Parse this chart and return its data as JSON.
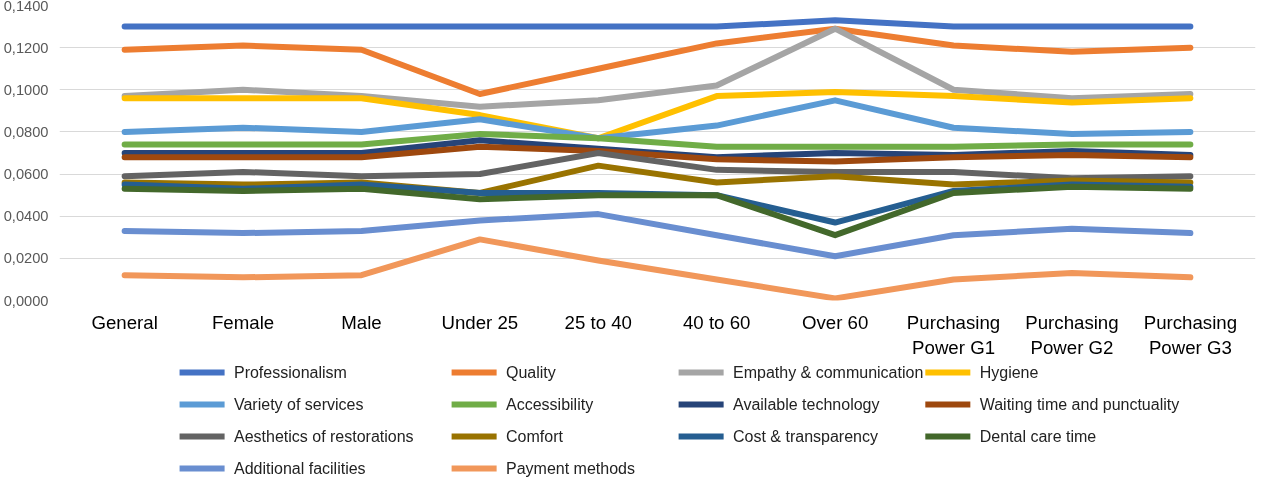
{
  "chart_data": {
    "type": "line",
    "categories": [
      "General",
      "Female",
      "Male",
      "Under 25",
      "25 to 40",
      "40 to 60",
      "Over 60",
      "Purchasing Power G1",
      "Purchasing Power G2",
      "Purchasing Power G3"
    ],
    "ylim": [
      0,
      0.14
    ],
    "yticks": [
      {
        "value": 0,
        "label": "0,0000"
      },
      {
        "value": 0.02,
        "label": "0,0200"
      },
      {
        "value": 0.04,
        "label": "0,0400"
      },
      {
        "value": 0.06,
        "label": "0,0600"
      },
      {
        "value": 0.08,
        "label": "0,0800"
      },
      {
        "value": 0.1,
        "label": "0,1000"
      },
      {
        "value": 0.12,
        "label": "0,1200"
      },
      {
        "value": 0.14,
        "label": "0,1400"
      }
    ],
    "grid": "y",
    "legend": "bottom",
    "marker": "none",
    "line_style": "solid",
    "series": [
      {
        "name": "Professionalism",
        "color": "#4472c4",
        "values": [
          0.13,
          0.13,
          0.13,
          0.13,
          0.13,
          0.13,
          0.133,
          0.13,
          0.13,
          0.13
        ]
      },
      {
        "name": "Quality",
        "color": "#ed7d31",
        "values": [
          0.119,
          0.121,
          0.119,
          0.098,
          0.11,
          0.122,
          0.129,
          0.121,
          0.118,
          0.12
        ]
      },
      {
        "name": "Empathy & communication",
        "color": "#a5a5a5",
        "values": [
          0.097,
          0.1,
          0.097,
          0.092,
          0.095,
          0.102,
          0.129,
          0.1,
          0.096,
          0.098
        ]
      },
      {
        "name": "Hygiene",
        "color": "#ffc000",
        "values": [
          0.096,
          0.096,
          0.096,
          0.088,
          0.077,
          0.097,
          0.099,
          0.097,
          0.094,
          0.096
        ]
      },
      {
        "name": "Variety of services",
        "color": "#5b9bd5",
        "values": [
          0.08,
          0.082,
          0.08,
          0.086,
          0.077,
          0.083,
          0.095,
          0.082,
          0.079,
          0.08
        ]
      },
      {
        "name": "Accessibility",
        "color": "#70ad47",
        "values": [
          0.074,
          0.074,
          0.074,
          0.079,
          0.077,
          0.073,
          0.073,
          0.073,
          0.074,
          0.074
        ]
      },
      {
        "name": "Available technology",
        "color": "#264478",
        "values": [
          0.07,
          0.07,
          0.07,
          0.076,
          0.072,
          0.068,
          0.07,
          0.069,
          0.071,
          0.069
        ]
      },
      {
        "name": "Waiting time and punctuality",
        "color": "#9e480e",
        "values": [
          0.068,
          0.068,
          0.068,
          0.073,
          0.071,
          0.067,
          0.066,
          0.068,
          0.069,
          0.068
        ]
      },
      {
        "name": "Aesthetics of restorations",
        "color": "#636363",
        "values": [
          0.059,
          0.061,
          0.059,
          0.06,
          0.07,
          0.062,
          0.061,
          0.061,
          0.058,
          0.059
        ]
      },
      {
        "name": "Comfort",
        "color": "#997300",
        "values": [
          0.056,
          0.055,
          0.056,
          0.051,
          0.064,
          0.056,
          0.059,
          0.055,
          0.057,
          0.056
        ]
      },
      {
        "name": "Cost & transparency",
        "color": "#255e91",
        "values": [
          0.055,
          0.053,
          0.055,
          0.051,
          0.051,
          0.05,
          0.037,
          0.052,
          0.055,
          0.054
        ]
      },
      {
        "name": "Dental care time",
        "color": "#43682b",
        "values": [
          0.053,
          0.052,
          0.053,
          0.048,
          0.05,
          0.05,
          0.031,
          0.051,
          0.054,
          0.053
        ]
      },
      {
        "name": "Additional facilities",
        "color": "#698ed0",
        "values": [
          0.033,
          0.032,
          0.033,
          0.038,
          0.041,
          0.031,
          0.021,
          0.031,
          0.034,
          0.032
        ]
      },
      {
        "name": "Payment methods",
        "color": "#f1975a",
        "values": [
          0.012,
          0.011,
          0.012,
          0.029,
          0.019,
          0.01,
          0.001,
          0.01,
          0.013,
          0.011
        ]
      }
    ]
  }
}
